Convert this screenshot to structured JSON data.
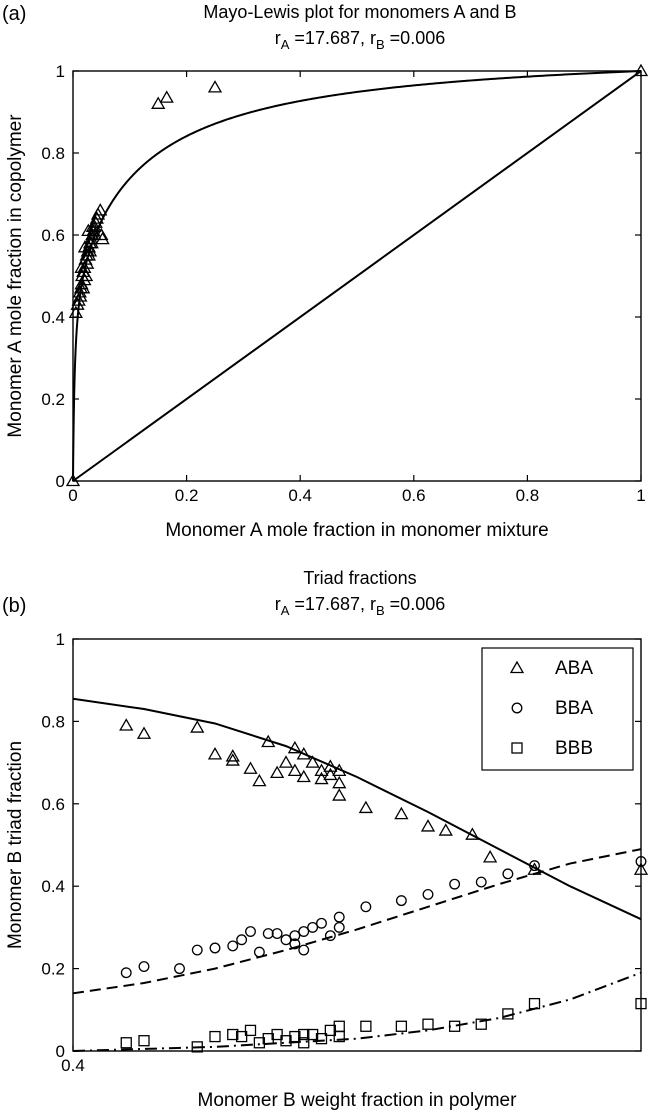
{
  "chart_data": [
    {
      "type": "scatter",
      "panel_label": "(a)",
      "title": "Mayo-Lewis plot for monomers A and B",
      "subtitle_parts": [
        "r",
        "A",
        " =17.687, r",
        "B",
        " =0.006"
      ],
      "xlabel": "Monomer A mole fraction in monomer mixture",
      "ylabel": "Monomer A mole fraction in copolymer",
      "xlim": [
        0,
        1
      ],
      "ylim": [
        0,
        1
      ],
      "x_ticks": [
        0,
        0.2,
        0.4,
        0.6,
        0.8,
        1
      ],
      "x_tick_labels": [
        "0",
        "0.2",
        "0.4",
        "0.6",
        "0.8",
        "1"
      ],
      "y_ticks": [
        0,
        0.2,
        0.4,
        0.6,
        0.8,
        1
      ],
      "y_tick_labels": [
        "0",
        "0.2",
        "0.4",
        "0.6",
        "0.8",
        "1"
      ],
      "grid": false,
      "model": {
        "rA": 17.687,
        "rB": 0.006
      },
      "lines": [
        {
          "kind": "mayo-lewis-fit",
          "style": "solid"
        },
        {
          "kind": "diagonal",
          "style": "solid",
          "x": [
            0,
            1
          ],
          "y": [
            0,
            1
          ]
        }
      ],
      "series": [
        {
          "marker": "triangle",
          "x": [
            0.0,
            1.0,
            0.15,
            0.165,
            0.25,
            0.005,
            0.008,
            0.01,
            0.012,
            0.014,
            0.015,
            0.016,
            0.018,
            0.02,
            0.022,
            0.024,
            0.026,
            0.028,
            0.03,
            0.032,
            0.034,
            0.036,
            0.038,
            0.04,
            0.042,
            0.044,
            0.048,
            0.05,
            0.052,
            0.02,
            0.025,
            0.03,
            0.035,
            0.013,
            0.018,
            0.023,
            0.028,
            0.033,
            0.038,
            0.015,
            0.021,
            0.027
          ],
          "y": [
            0.0,
            1.0,
            0.92,
            0.935,
            0.96,
            0.41,
            0.43,
            0.44,
            0.46,
            0.47,
            0.48,
            0.5,
            0.51,
            0.52,
            0.54,
            0.55,
            0.56,
            0.57,
            0.58,
            0.59,
            0.6,
            0.61,
            0.62,
            0.63,
            0.64,
            0.65,
            0.66,
            0.6,
            0.59,
            0.49,
            0.53,
            0.56,
            0.62,
            0.45,
            0.47,
            0.5,
            0.55,
            0.58,
            0.6,
            0.52,
            0.57,
            0.61
          ]
        }
      ]
    },
    {
      "type": "scatter",
      "panel_label": "(b)",
      "title": "Triad fractions",
      "subtitle_parts": [
        "r",
        "A",
        " =17.687, r",
        "B",
        " =0.006"
      ],
      "xlabel": "Monomer B weight fraction in polymer",
      "ylabel": "Monomer B triad fraction",
      "xlim": [
        0.4,
        0.72
      ],
      "ylim": [
        0,
        1
      ],
      "x_ticks": [
        0.4
      ],
      "x_tick_labels": [
        "0.4"
      ],
      "y_ticks": [
        0,
        0.2,
        0.4,
        0.6,
        0.8,
        1
      ],
      "y_tick_labels": [
        "0",
        "0.2",
        "0.4",
        "0.6",
        "0.8",
        "1"
      ],
      "grid": false,
      "legend": {
        "position": "top-right"
      },
      "series": [
        {
          "name": "ABA",
          "marker": "triangle",
          "fit": {
            "style": "solid",
            "x": [
              0.4,
              0.44,
              0.48,
              0.52,
              0.56,
              0.6,
              0.64,
              0.68,
              0.72
            ],
            "y": [
              0.855,
              0.83,
              0.795,
              0.74,
              0.665,
              0.58,
              0.49,
              0.4,
              0.32
            ]
          },
          "x": [
            0.43,
            0.44,
            0.47,
            0.48,
            0.49,
            0.49,
            0.5,
            0.505,
            0.51,
            0.515,
            0.52,
            0.525,
            0.525,
            0.53,
            0.53,
            0.535,
            0.54,
            0.54,
            0.545,
            0.545,
            0.55,
            0.55,
            0.55,
            0.565,
            0.585,
            0.6,
            0.61,
            0.625,
            0.635,
            0.66,
            0.72
          ],
          "y": [
            0.79,
            0.77,
            0.785,
            0.72,
            0.705,
            0.715,
            0.685,
            0.655,
            0.75,
            0.675,
            0.7,
            0.735,
            0.68,
            0.72,
            0.665,
            0.7,
            0.68,
            0.66,
            0.69,
            0.67,
            0.68,
            0.62,
            0.65,
            0.59,
            0.575,
            0.545,
            0.535,
            0.525,
            0.47,
            0.44,
            0.44
          ]
        },
        {
          "name": "BBA",
          "marker": "circle",
          "fit": {
            "style": "dashed",
            "x": [
              0.4,
              0.44,
              0.48,
              0.52,
              0.56,
              0.6,
              0.64,
              0.68,
              0.72
            ],
            "y": [
              0.14,
              0.165,
              0.2,
              0.245,
              0.295,
              0.35,
              0.405,
              0.455,
              0.49
            ]
          },
          "x": [
            0.43,
            0.44,
            0.46,
            0.47,
            0.48,
            0.49,
            0.495,
            0.5,
            0.505,
            0.51,
            0.515,
            0.52,
            0.525,
            0.525,
            0.53,
            0.53,
            0.535,
            0.54,
            0.545,
            0.55,
            0.55,
            0.565,
            0.585,
            0.6,
            0.615,
            0.63,
            0.645,
            0.66,
            0.72
          ],
          "y": [
            0.19,
            0.205,
            0.2,
            0.245,
            0.25,
            0.255,
            0.27,
            0.29,
            0.24,
            0.285,
            0.285,
            0.27,
            0.28,
            0.26,
            0.29,
            0.245,
            0.3,
            0.31,
            0.28,
            0.3,
            0.325,
            0.35,
            0.365,
            0.38,
            0.405,
            0.41,
            0.43,
            0.45,
            0.46
          ]
        },
        {
          "name": "BBB",
          "marker": "square",
          "fit": {
            "style": "dashdot",
            "x": [
              0.4,
              0.44,
              0.48,
              0.52,
              0.56,
              0.6,
              0.64,
              0.68,
              0.72
            ],
            "y": [
              0.0,
              0.005,
              0.01,
              0.02,
              0.03,
              0.05,
              0.08,
              0.125,
              0.19
            ]
          },
          "x": [
            0.43,
            0.44,
            0.47,
            0.48,
            0.49,
            0.495,
            0.5,
            0.505,
            0.51,
            0.515,
            0.52,
            0.525,
            0.53,
            0.53,
            0.535,
            0.54,
            0.545,
            0.55,
            0.55,
            0.565,
            0.585,
            0.6,
            0.615,
            0.63,
            0.645,
            0.66,
            0.72
          ],
          "y": [
            0.02,
            0.025,
            0.01,
            0.035,
            0.04,
            0.035,
            0.05,
            0.02,
            0.03,
            0.04,
            0.025,
            0.035,
            0.04,
            0.02,
            0.04,
            0.03,
            0.05,
            0.035,
            0.06,
            0.06,
            0.06,
            0.065,
            0.06,
            0.065,
            0.09,
            0.115,
            0.115
          ]
        }
      ]
    }
  ]
}
